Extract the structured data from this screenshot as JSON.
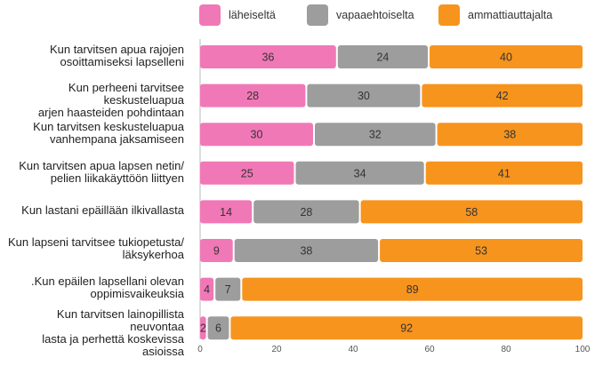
{
  "chart_data": {
    "type": "bar",
    "orientation": "horizontal",
    "stacked": true,
    "title": "",
    "xlabel": "",
    "ylabel": "",
    "xlim": [
      0,
      100
    ],
    "xticks": [
      0,
      20,
      40,
      60,
      80,
      100
    ],
    "legend_position": "top",
    "categories": [
      "Kun tarvitsen apua rajojen\nosoittamiseksi lapselleni",
      "Kun perheeni tarvitsee keskusteluapua\narjen haasteiden pohdintaan",
      "Kun tarvitsen keskusteluapua\nvanhempana jaksamiseen",
      "Kun tarvitsen apua lapsen netin/\npelien liikakäyttöön liittyen",
      "Kun lastani epäillään ilkivallasta",
      "Kun lapseni tarvitsee tukiopetusta/\nläksykerhoa",
      ".Kun epäilen lapsellani olevan\noppimisvaikeuksia",
      "Kun tarvitsen lainopillista neuvontaa\nlasta ja perhettä koskevissa asioissa"
    ],
    "series": [
      {
        "name": "läheiseltä",
        "color": "#f178b6",
        "values": [
          36,
          28,
          30,
          25,
          14,
          9,
          4,
          2
        ]
      },
      {
        "name": "vapaaehtoiselta",
        "color": "#9d9d9d",
        "values": [
          24,
          30,
          32,
          34,
          28,
          38,
          7,
          6
        ]
      },
      {
        "name": "ammattiauttajalta",
        "color": "#f7941d",
        "values": [
          40,
          42,
          38,
          41,
          58,
          53,
          89,
          92
        ]
      }
    ]
  }
}
